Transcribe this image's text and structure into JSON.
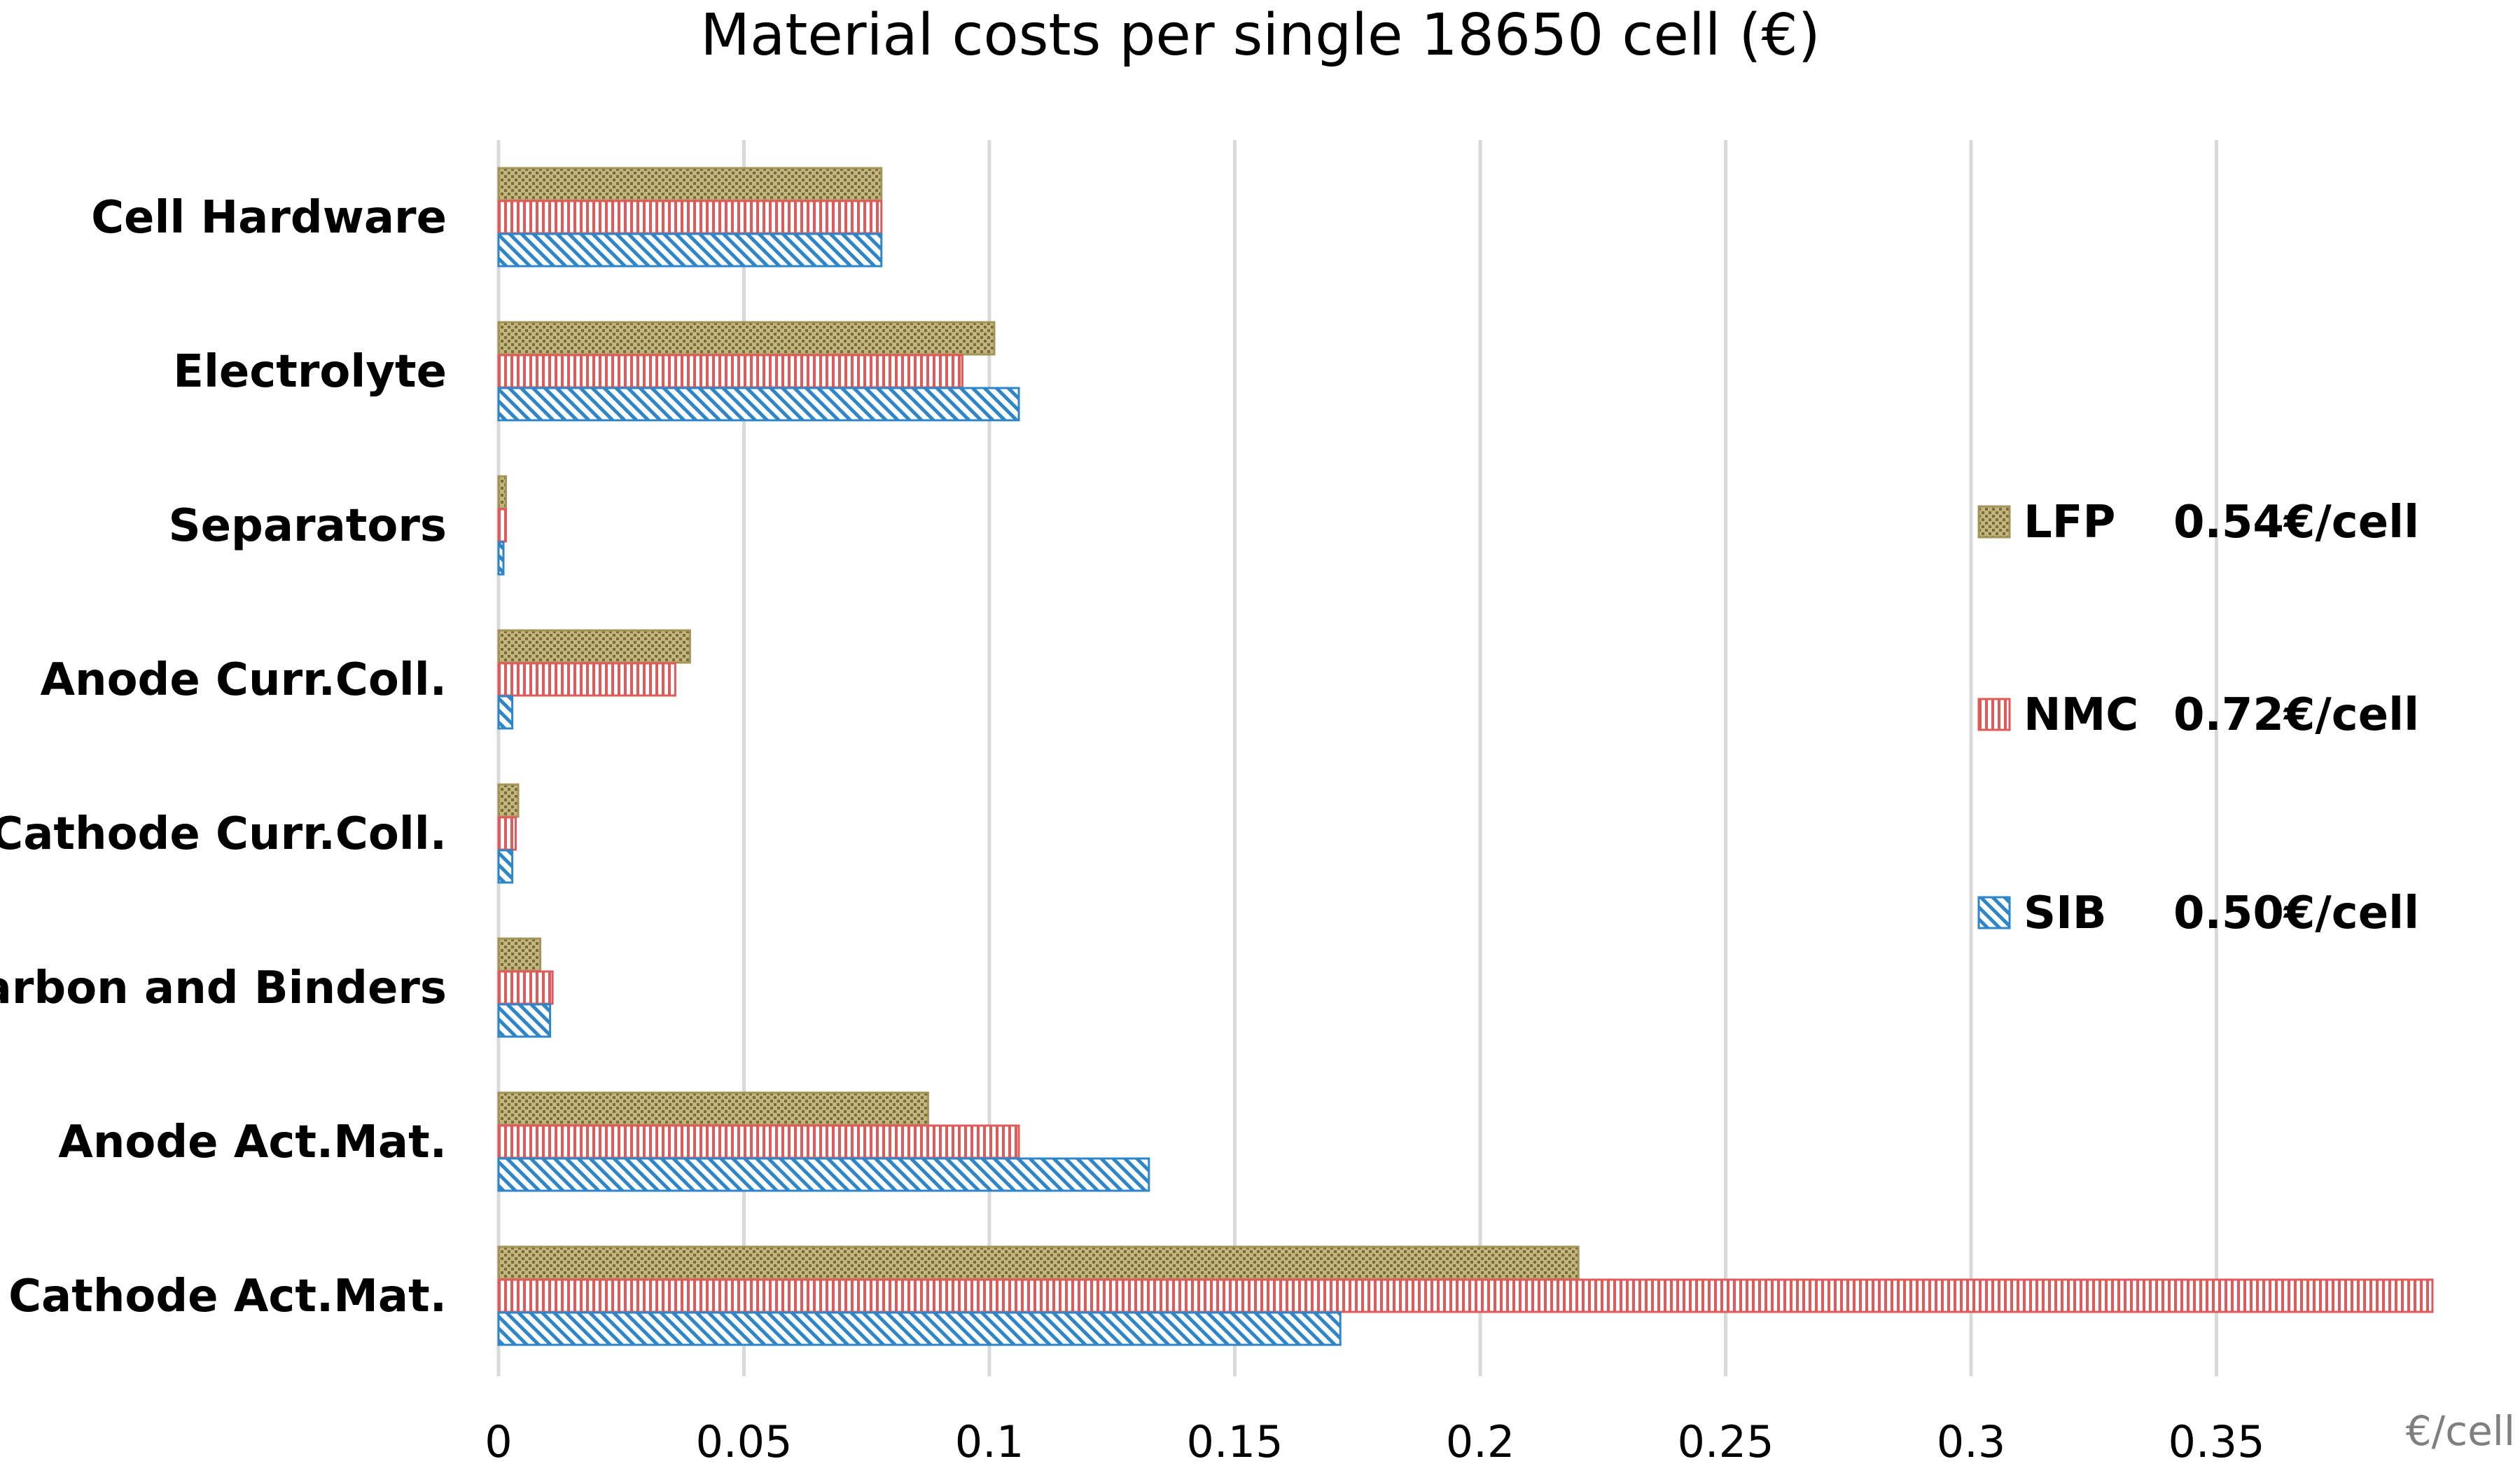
{
  "chart_data": {
    "type": "bar",
    "orientation": "horizontal",
    "title": "Material costs per single 18650 cell (€)",
    "xlabel": "€/cell",
    "ylabel": "",
    "xlim": [
      0,
      0.4
    ],
    "x_ticks": [
      0,
      0.05,
      0.1,
      0.15,
      0.2,
      0.25,
      0.3,
      0.35
    ],
    "x_tick_labels": [
      "0",
      "0.05",
      "0.1",
      "0.15",
      "0.2",
      "0.25",
      "0.3",
      "0.35"
    ],
    "grid": true,
    "legend_position": "right",
    "categories": [
      "Cell Hardware",
      "Electrolyte",
      "Separators",
      "Anode Curr.Coll.",
      "Cathode Curr.Coll.",
      "Carbon and Binders",
      "Anode Act.Mat.",
      "Cathode Act.Mat."
    ],
    "series": [
      {
        "name": "LFP",
        "total_label": "0.54€/cell",
        "color": "#a49458",
        "pattern": "dots",
        "values": [
          0.078,
          0.101,
          0.0015,
          0.039,
          0.004,
          0.0085,
          0.0875,
          0.22
        ]
      },
      {
        "name": "NMC",
        "total_label": "0.72€/cell",
        "color": "#e05a5a",
        "pattern": "vertical-lines",
        "values": [
          0.078,
          0.0945,
          0.0015,
          0.036,
          0.0035,
          0.011,
          0.106,
          0.394
        ]
      },
      {
        "name": "SIB",
        "total_label": "0.50€/cell",
        "color": "#2e86c8",
        "pattern": "diagonal-lines",
        "values": [
          0.078,
          0.106,
          0.001,
          0.0028,
          0.0028,
          0.0105,
          0.1325,
          0.1715
        ]
      }
    ]
  }
}
